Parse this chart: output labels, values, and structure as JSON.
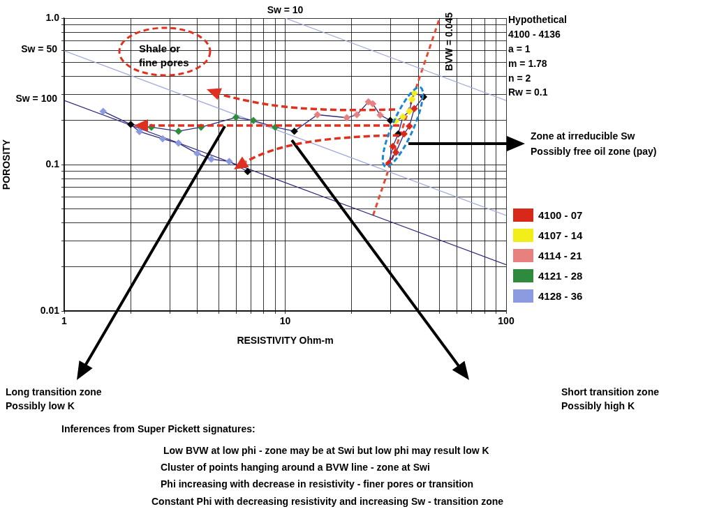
{
  "chart_data": {
    "type": "scatter",
    "xlabel": "RESISTIVITY Ohm-m",
    "ylabel": "POROSITY",
    "log": "xy",
    "grid": true,
    "legend": "right",
    "marker": "diamond",
    "xlim": [
      1,
      100
    ],
    "ylim": [
      0.01,
      1
    ],
    "xticks": [
      1,
      {
        "value": 2,
        "label": null
      },
      {
        "value": 3,
        "label": null
      },
      {
        "value": 4,
        "label": null
      },
      {
        "value": 5,
        "label": null
      },
      {
        "value": 6,
        "label": null
      },
      {
        "value": 7,
        "label": null
      },
      {
        "value": 8,
        "label": null
      },
      {
        "value": 9,
        "label": null
      },
      10,
      {
        "value": 20,
        "label": null
      },
      {
        "value": 30,
        "label": null
      },
      {
        "value": 40,
        "label": null
      },
      {
        "value": 50,
        "label": null
      },
      {
        "value": 60,
        "label": null
      },
      {
        "value": 70,
        "label": null
      },
      {
        "value": 80,
        "label": null
      },
      {
        "value": 90,
        "label": null
      },
      100
    ],
    "yticks": [
      0.01,
      {
        "value": 0.02,
        "label": null
      },
      {
        "value": 0.03,
        "label": null
      },
      {
        "value": 0.04,
        "label": null
      },
      {
        "value": 0.05,
        "label": null
      },
      {
        "value": 0.06,
        "label": null
      },
      {
        "value": 0.07,
        "label": null
      },
      {
        "value": 0.08,
        "label": null
      },
      {
        "value": 0.09,
        "label": null
      },
      0.1,
      {
        "value": 0.2,
        "label": null
      },
      {
        "value": 0.3,
        "label": null
      },
      {
        "value": 0.4,
        "label": null
      },
      {
        "value": 0.5,
        "label": null
      },
      {
        "value": 0.6,
        "label": null
      },
      {
        "value": 0.7,
        "label": null
      },
      {
        "value": 0.8,
        "label": null
      },
      {
        "value": 0.9,
        "label": null
      },
      {
        "value": 1,
        "label": "1.0"
      }
    ],
    "series": [
      {
        "type": "line",
        "marker": "none",
        "color": "#2e2a80",
        "x": [
          1.5,
          2.0,
          2.19,
          2.79,
          3.29,
          4.0,
          4.63,
          5.58,
          6.76
        ],
        "values": [
          0.231,
          0.188,
          0.168,
          0.15,
          0.14,
          0.119,
          0.109,
          0.105,
          0.0896
        ]
      },
      {
        "type": "line",
        "marker": "none",
        "color": "#2e2a80",
        "x": [
          2.0,
          2.48,
          3.29,
          4.16,
          5.99,
          7.18,
          9.02,
          11.0,
          14.0,
          19.0,
          21.1,
          23.8,
          24.9,
          26.9,
          29.9,
          31.7,
          34.1,
          36.5,
          37.5,
          38.4,
          42.3,
          38.4,
          36.5,
          34.5,
          31.7,
          29.4,
          30.7,
          32.5,
          34.1
        ],
        "values": [
          0.188,
          0.18,
          0.169,
          0.18,
          0.21,
          0.2,
          0.18,
          0.169,
          0.219,
          0.209,
          0.219,
          0.268,
          0.26,
          0.218,
          0.2,
          0.199,
          0.212,
          0.231,
          0.279,
          0.308,
          0.29,
          0.241,
          0.183,
          0.162,
          0.121,
          0.102,
          0.133,
          0.162,
          0.212
        ]
      },
      {
        "name": "Sw = 100",
        "type": "line",
        "marker": "none",
        "color": "#2e2a80",
        "x": [
          1,
          100
        ],
        "values": [
          0.274,
          0.0207
        ]
      },
      {
        "name": "Sw = 50",
        "type": "line",
        "marker": "none",
        "color": "#a3acdc",
        "x": [
          1,
          100
        ],
        "values": [
          0.598,
          0.045
        ]
      },
      {
        "name": "Sw = 10",
        "type": "line",
        "marker": "none",
        "color": "#a3acdc",
        "x": [
          10,
          100
        ],
        "values": [
          1,
          0.274
        ]
      },
      {
        "name": "BVW = 0.045",
        "type": "line",
        "marker": "none",
        "line_style": "dashed",
        "color": "#ea4a30",
        "x": [
          25,
          50
        ],
        "values": [
          0.045,
          1
        ]
      },
      {
        "name": "4100 - 07",
        "type": "scatter",
        "color": "#d8281a",
        "x": [
          29.4,
          30.7,
          31.7,
          34.5,
          36.5,
          38.4
        ],
        "values": [
          0.102,
          0.133,
          0.121,
          0.162,
          0.183,
          0.241
        ]
      },
      {
        "name": "4107 - 14",
        "type": "scatter",
        "color": "#f2ee1a",
        "x": [
          31.7,
          34.1,
          36.5,
          37.5,
          38.4
        ],
        "values": [
          0.199,
          0.212,
          0.231,
          0.279,
          0.308
        ]
      },
      {
        "name": "4114 - 21",
        "type": "scatter",
        "color": "#e88080",
        "x": [
          14.0,
          19.0,
          21.1,
          23.8,
          24.9,
          26.9
        ],
        "values": [
          0.219,
          0.209,
          0.219,
          0.268,
          0.26,
          0.218
        ]
      },
      {
        "name": "4121 - 28",
        "type": "scatter",
        "color": "#2e8b3e",
        "x": [
          2.48,
          3.29,
          4.16,
          5.99,
          7.18,
          9.02
        ],
        "values": [
          0.18,
          0.169,
          0.18,
          0.21,
          0.2,
          0.18
        ]
      },
      {
        "name": "4128 - 36",
        "type": "scatter",
        "color": "#8c9ae0",
        "x": [
          1.5,
          2.19,
          2.79,
          3.29,
          4.0,
          4.63,
          5.58
        ],
        "values": [
          0.231,
          0.168,
          0.15,
          0.14,
          0.119,
          0.109,
          0.105
        ]
      },
      {
        "type": "scatter",
        "color": "#000000",
        "x": [
          2.0,
          6.76,
          11.0,
          29.9,
          32.5,
          42.3
        ],
        "values": [
          0.188,
          0.0896,
          0.169,
          0.2,
          0.162,
          0.29
        ]
      }
    ],
    "annotations": [
      "Shale or fine pores",
      "Hypothetical",
      "4100 - 4136",
      "a = 1",
      "m = 1.78",
      "n = 2",
      "Rw = 0.1",
      "Zone at irreducible Sw",
      "Possibly free oil zone (pay)",
      "Long transition zone",
      "Possibly low K",
      "Short transition zone",
      "Possibly high K",
      "Inferences from Super Pickett signatures:",
      "Low BVW at low phi - zone may be at Swi but low phi may result low K",
      "Cluster of points hanging around a BVW line - zone at Swi",
      "Phi increasing with decrease in resistivity - finer pores or transition",
      "Constant Phi with decreasing resistivity and increasing Sw - transition zone"
    ]
  }
}
